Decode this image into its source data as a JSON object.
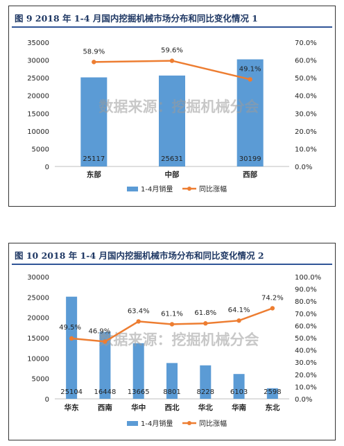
{
  "charts": [
    {
      "title": "图 9   2018 年 1-4 月国内挖掘机械市场分布和同比变化情况 1",
      "watermark": "数据来源：挖掘机械分会",
      "chart_data": {
        "type": "bar+line",
        "categories": [
          "东部",
          "中部",
          "西部"
        ],
        "series": [
          {
            "name": "1-4月销量",
            "type": "bar",
            "axis": "left",
            "values": [
              25117,
              25631,
              30199
            ],
            "color": "#5b9bd5"
          },
          {
            "name": "同比涨幅",
            "type": "line",
            "axis": "right",
            "values": [
              58.9,
              59.6,
              49.1
            ],
            "color": "#ed7d31"
          }
        ],
        "left_axis": {
          "min": 0,
          "max": 35000,
          "step": 5000
        },
        "right_axis": {
          "min": 0,
          "max": 70,
          "step": 10,
          "format": "percent"
        },
        "bar_labels": [
          "25117",
          "25631",
          "30199"
        ],
        "line_labels": [
          "58.9%",
          "59.6%",
          "49.1%"
        ],
        "legend": "bottom"
      }
    },
    {
      "title": "图 10   2018 年 1-4 月国内挖掘机械市场分布和同比变化情况 2",
      "watermark": "数据来源：挖掘机械分会",
      "chart_data": {
        "type": "bar+line",
        "categories": [
          "华东",
          "西南",
          "华中",
          "西北",
          "华北",
          "华南",
          "东北"
        ],
        "series": [
          {
            "name": "1-4月销量",
            "type": "bar",
            "axis": "left",
            "values": [
              25104,
              16448,
              13665,
              8801,
              8228,
              6103,
              2598
            ],
            "color": "#5b9bd5"
          },
          {
            "name": "同比涨幅",
            "type": "line",
            "axis": "right",
            "values": [
              49.5,
              46.9,
              63.4,
              61.1,
              61.8,
              64.1,
              74.2
            ],
            "color": "#ed7d31"
          }
        ],
        "left_axis": {
          "min": 0,
          "max": 30000,
          "step": 5000
        },
        "right_axis": {
          "min": 0,
          "max": 100,
          "step": 10,
          "format": "percent"
        },
        "bar_labels": [
          "25104",
          "16448",
          "13665",
          "8801",
          "8228",
          "6103",
          "2598"
        ],
        "line_labels": [
          "49.5%",
          "46.9%",
          "63.4%",
          "61.1%",
          "61.8%",
          "64.1%",
          "74.2%"
        ],
        "legend": "bottom"
      }
    }
  ]
}
